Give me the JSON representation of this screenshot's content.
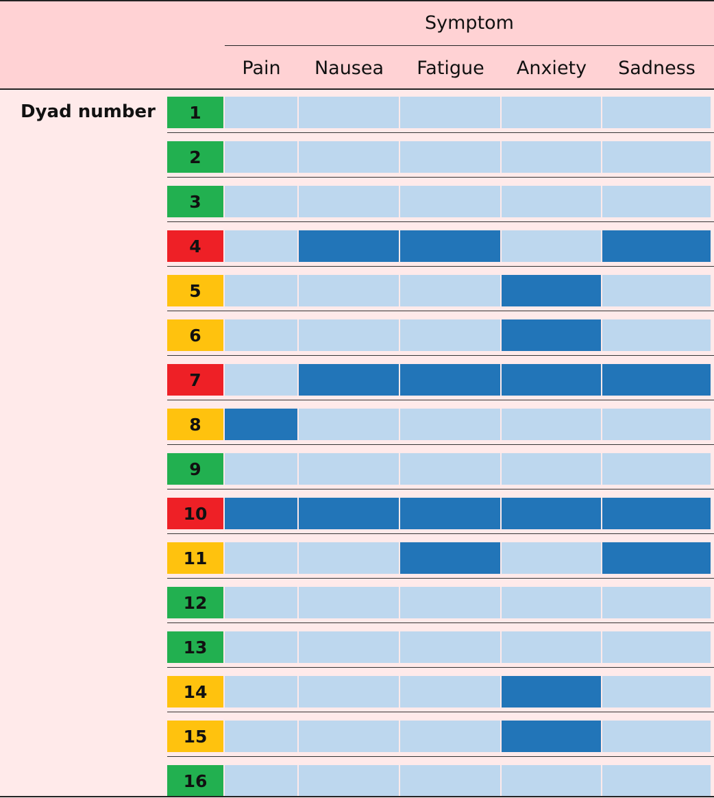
{
  "colors": {
    "header_bg": "#ffd2d4",
    "body_bg": "#ffeaea",
    "cell_absent": "#bdd7ee",
    "cell_present": "#2275b8",
    "status_green": "#22b050",
    "status_amber": "#ffc20e",
    "status_red": "#ee2026"
  },
  "chart_data": {
    "type": "heatmap",
    "column_group_label": "Symptom",
    "row_group_label": "Dyad number",
    "columns": [
      "Pain",
      "Nausea",
      "Fatigue",
      "Anxiety",
      "Sadness"
    ],
    "rows": [
      {
        "label": "1",
        "status": "green",
        "values": [
          0,
          0,
          0,
          0,
          0
        ]
      },
      {
        "label": "2",
        "status": "green",
        "values": [
          0,
          0,
          0,
          0,
          0
        ]
      },
      {
        "label": "3",
        "status": "green",
        "values": [
          0,
          0,
          0,
          0,
          0
        ]
      },
      {
        "label": "4",
        "status": "red",
        "values": [
          0,
          1,
          1,
          0,
          1
        ]
      },
      {
        "label": "5",
        "status": "amber",
        "values": [
          0,
          0,
          0,
          1,
          0
        ]
      },
      {
        "label": "6",
        "status": "amber",
        "values": [
          0,
          0,
          0,
          1,
          0
        ]
      },
      {
        "label": "7",
        "status": "red",
        "values": [
          0,
          1,
          1,
          1,
          1
        ]
      },
      {
        "label": "8",
        "status": "amber",
        "values": [
          1,
          0,
          0,
          0,
          0
        ]
      },
      {
        "label": "9",
        "status": "green",
        "values": [
          0,
          0,
          0,
          0,
          0
        ]
      },
      {
        "label": "10",
        "status": "red",
        "values": [
          1,
          1,
          1,
          1,
          1
        ]
      },
      {
        "label": "11",
        "status": "amber",
        "values": [
          0,
          0,
          1,
          0,
          1
        ]
      },
      {
        "label": "12",
        "status": "green",
        "values": [
          0,
          0,
          0,
          0,
          0
        ]
      },
      {
        "label": "13",
        "status": "green",
        "values": [
          0,
          0,
          0,
          0,
          0
        ]
      },
      {
        "label": "14",
        "status": "amber",
        "values": [
          0,
          0,
          0,
          1,
          0
        ]
      },
      {
        "label": "15",
        "status": "amber",
        "values": [
          0,
          0,
          0,
          1,
          0
        ]
      },
      {
        "label": "16",
        "status": "green",
        "values": [
          0,
          0,
          0,
          0,
          0
        ]
      }
    ]
  }
}
